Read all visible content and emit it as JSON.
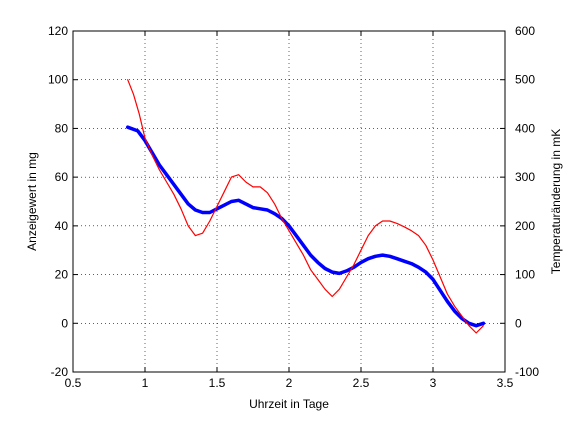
{
  "chart_data": {
    "type": "line",
    "xlabel": "Uhrzeit in Tage",
    "ylabel_left": "Anzeigewert in mg",
    "ylabel_right": "Temperaturänderung in mK",
    "xlim": [
      0.5,
      3.5
    ],
    "ylim_left": [
      -20,
      120
    ],
    "ylim_right": [
      -100,
      600
    ],
    "x_ticks": [
      0.5,
      1,
      1.5,
      2,
      2.5,
      3,
      3.5
    ],
    "x_tick_labels": [
      "0.5",
      "1",
      "1.5",
      "2",
      "2.5",
      "3",
      "3.5"
    ],
    "y_left_ticks": [
      -20,
      0,
      20,
      40,
      60,
      80,
      100,
      120
    ],
    "y_left_tick_labels": [
      "-20",
      "0",
      "20",
      "40",
      "60",
      "80",
      "100",
      "120"
    ],
    "y_right_ticks": [
      -100,
      0,
      100,
      200,
      300,
      400,
      500,
      600
    ],
    "y_right_tick_labels": [
      "-100",
      "0",
      "100",
      "200",
      "300",
      "400",
      "500",
      "600"
    ],
    "grid": true,
    "series": [
      {
        "axis": "left",
        "color": "#0000ff",
        "x": [
          0.88,
          0.95,
          1.0,
          1.05,
          1.1,
          1.15,
          1.2,
          1.25,
          1.3,
          1.35,
          1.4,
          1.45,
          1.5,
          1.55,
          1.6,
          1.65,
          1.7,
          1.75,
          1.8,
          1.85,
          1.9,
          1.95,
          2.0,
          2.05,
          2.1,
          2.15,
          2.2,
          2.25,
          2.3,
          2.35,
          2.4,
          2.45,
          2.5,
          2.55,
          2.6,
          2.65,
          2.7,
          2.75,
          2.8,
          2.85,
          2.9,
          2.95,
          3.0,
          3.05,
          3.1,
          3.15,
          3.2,
          3.25,
          3.3,
          3.35
        ],
        "values": [
          80.5,
          79,
          75,
          70,
          65,
          61,
          57,
          53,
          49,
          46.5,
          45.5,
          45.5,
          47,
          48.5,
          50,
          50.5,
          49,
          47.5,
          47,
          46.5,
          45,
          43,
          40,
          36,
          32,
          28,
          25,
          22.5,
          21,
          20.5,
          21.5,
          23,
          25,
          26.5,
          27.5,
          28,
          27.5,
          26.5,
          25.5,
          24.5,
          23,
          21,
          18,
          13.5,
          9,
          5,
          2,
          0,
          -1,
          0
        ]
      },
      {
        "axis": "right",
        "color": "#ff0000",
        "x": [
          0.88,
          0.92,
          0.96,
          1.0,
          1.05,
          1.1,
          1.15,
          1.2,
          1.25,
          1.3,
          1.35,
          1.4,
          1.45,
          1.5,
          1.55,
          1.6,
          1.65,
          1.7,
          1.75,
          1.8,
          1.85,
          1.9,
          1.95,
          2.0,
          2.05,
          2.1,
          2.15,
          2.2,
          2.25,
          2.3,
          2.35,
          2.4,
          2.45,
          2.5,
          2.55,
          2.6,
          2.65,
          2.7,
          2.75,
          2.8,
          2.85,
          2.9,
          2.95,
          3.0,
          3.05,
          3.1,
          3.15,
          3.2,
          3.25,
          3.3,
          3.35
        ],
        "values": [
          500,
          470,
          430,
          380,
          345,
          315,
          290,
          265,
          235,
          200,
          180,
          185,
          210,
          240,
          270,
          300,
          305,
          290,
          280,
          280,
          268,
          245,
          215,
          190,
          165,
          140,
          110,
          90,
          70,
          55,
          70,
          95,
          120,
          150,
          180,
          200,
          210,
          210,
          205,
          198,
          190,
          180,
          160,
          130,
          95,
          60,
          35,
          15,
          -5,
          -20,
          -5
        ]
      }
    ]
  }
}
